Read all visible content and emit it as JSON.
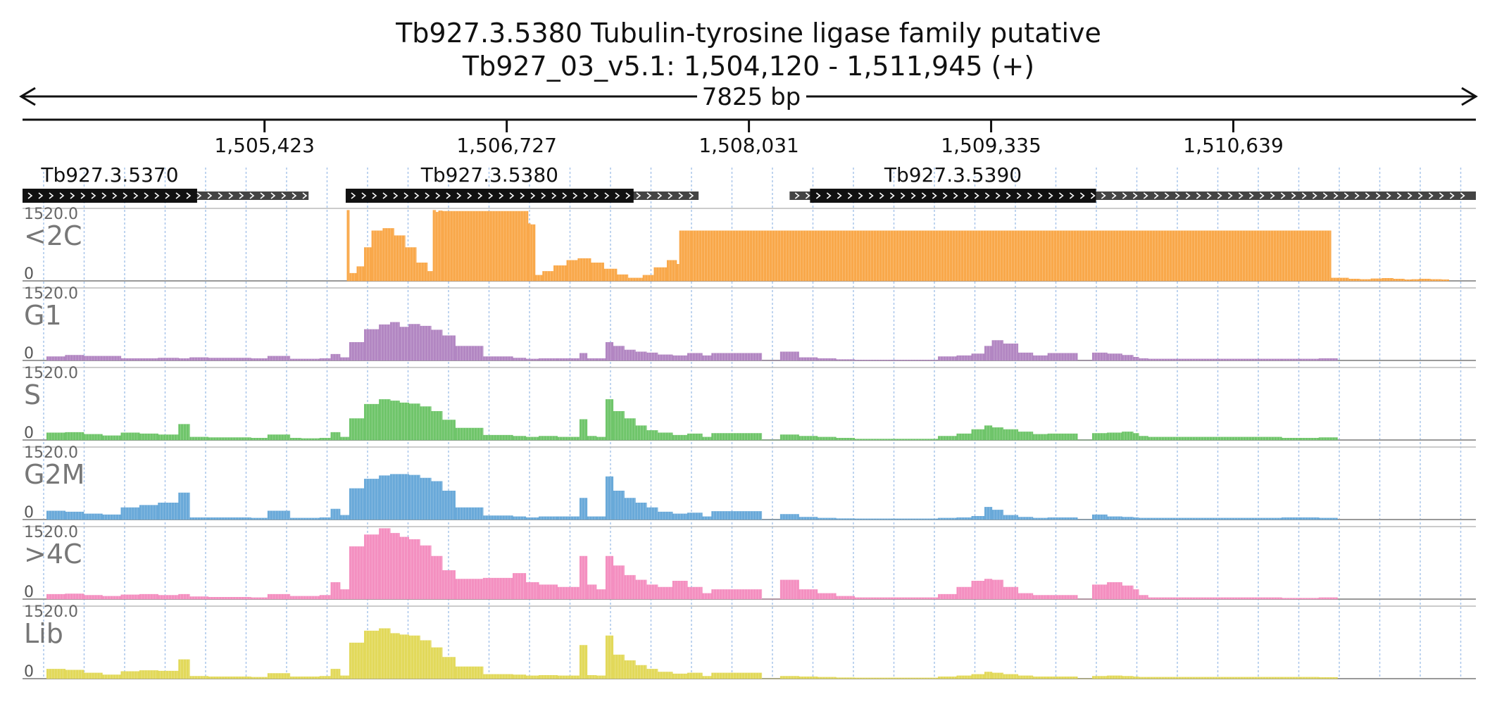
{
  "header": {
    "title": "Tb927.3.5380  Tubulin-tyrosine ligase family  putative",
    "subtitle": "Tb927_03_v5.1: 1,504,120 - 1,511,945 (+)",
    "length_label": "7825 bp"
  },
  "chart_data": {
    "type": "area",
    "title": "Tb927.3.5380  Tubulin-tyrosine ligase family  putative",
    "region": {
      "chromosome": "Tb927_03_v5.1",
      "start": 1504120,
      "end": 1511945,
      "strand": "+"
    },
    "xlim": [
      1504120,
      1511945
    ],
    "x_ticks": [
      {
        "value": 1505423,
        "label": "1,505,423"
      },
      {
        "value": 1506727,
        "label": "1,506,727"
      },
      {
        "value": 1508031,
        "label": "1,508,031"
      },
      {
        "value": 1509335,
        "label": "1,509,335"
      },
      {
        "value": 1510639,
        "label": "1,510,639"
      }
    ],
    "grid": true,
    "genes": [
      {
        "name": "Tb927.3.5370",
        "start": 1504120,
        "end": 1505660,
        "cds_start": 1504120,
        "cds_end": 1505060,
        "strand": "+"
      },
      {
        "name": "Tb927.3.5380",
        "start": 1505860,
        "end": 1507760,
        "cds_start": 1505860,
        "cds_end": 1507410,
        "strand": "+"
      },
      {
        "name": "Tb927.3.5390",
        "start": 1508250,
        "end": 1511945,
        "cds_start": 1508360,
        "cds_end": 1509900,
        "strand": "+"
      }
    ],
    "tracks_ylim": [
      0,
      1520.0
    ],
    "tracks": [
      {
        "name": "<2C",
        "color": "#f9a84a",
        "ymax_label": "1520.0",
        "ymin_label": "0",
        "x": [
          1505867,
          1505880,
          1505920,
          1505960,
          1506000,
          1506060,
          1506120,
          1506180,
          1506240,
          1506300,
          1506330,
          1506345,
          1506360,
          1506380,
          1506842,
          1506855,
          1506880,
          1506920,
          1506980,
          1507050,
          1507110,
          1507180,
          1507250,
          1507320,
          1507380,
          1507460,
          1507520,
          1507590,
          1507642,
          1507657,
          1507700,
          1507720,
          1511165,
          1511200,
          1511260,
          1511320,
          1511380,
          1511440,
          1511500,
          1511560,
          1511600,
          1511640,
          1511700,
          1511760,
          1511800
        ],
        "y": [
          1480,
          160,
          300,
          700,
          1050,
          1100,
          950,
          700,
          380,
          200,
          1480,
          1440,
          1470,
          1460,
          1200,
          1180,
          120,
          200,
          320,
          430,
          470,
          380,
          250,
          130,
          60,
          120,
          280,
          430,
          350,
          1050,
          1050,
          1050,
          60,
          60,
          40,
          30,
          45,
          55,
          40,
          25,
          30,
          40,
          30,
          25,
          0
        ]
      },
      {
        "name": "G1",
        "color": "#b286c2",
        "ymax_label": "1520.0",
        "ymin_label": "0",
        "x": [
          1504250,
          1504350,
          1504450,
          1504650,
          1504850,
          1504960,
          1505020,
          1505120,
          1505350,
          1505440,
          1505560,
          1505620,
          1505720,
          1505780,
          1505830,
          1505880,
          1505960,
          1506040,
          1506100,
          1506150,
          1506200,
          1506260,
          1506320,
          1506380,
          1506450,
          1506600,
          1506760,
          1506830,
          1506900,
          1507000,
          1507120,
          1507160,
          1507210,
          1507260,
          1507300,
          1507360,
          1507420,
          1507480,
          1507540,
          1507620,
          1507700,
          1507780,
          1507830,
          1508100,
          1508200,
          1508300,
          1508400,
          1508500,
          1508600,
          1509050,
          1509150,
          1509230,
          1509300,
          1509340,
          1509400,
          1509480,
          1509560,
          1509640,
          1509800,
          1509880,
          1509960,
          1510040,
          1510100,
          1510130,
          1510180,
          1510900,
          1511000,
          1511100,
          1511200
        ],
        "y": [
          80,
          110,
          90,
          40,
          50,
          40,
          60,
          50,
          40,
          90,
          30,
          30,
          40,
          130,
          60,
          380,
          650,
          750,
          800,
          700,
          760,
          720,
          640,
          520,
          300,
          80,
          50,
          30,
          40,
          40,
          150,
          40,
          40,
          380,
          300,
          220,
          180,
          160,
          120,
          100,
          150,
          100,
          150,
          0,
          180,
          60,
          40,
          20,
          10,
          80,
          100,
          140,
          300,
          420,
          350,
          160,
          100,
          150,
          0,
          160,
          140,
          110,
          70,
          40,
          30,
          30,
          30,
          40,
          0
        ]
      },
      {
        "name": "S",
        "color": "#6fc56a",
        "ymax_label": "1520.0",
        "ymin_label": "0",
        "x": [
          1504250,
          1504350,
          1504450,
          1504550,
          1504650,
          1504750,
          1504850,
          1504960,
          1505020,
          1505120,
          1505350,
          1505440,
          1505560,
          1505620,
          1505720,
          1505780,
          1505830,
          1505880,
          1505960,
          1506040,
          1506100,
          1506150,
          1506200,
          1506260,
          1506320,
          1506380,
          1506450,
          1506600,
          1506760,
          1506830,
          1506900,
          1507000,
          1507120,
          1507160,
          1507210,
          1507260,
          1507300,
          1507360,
          1507420,
          1507480,
          1507540,
          1507620,
          1507700,
          1507780,
          1507830,
          1508100,
          1508200,
          1508300,
          1508400,
          1508500,
          1508600,
          1509050,
          1509150,
          1509230,
          1509300,
          1509340,
          1509400,
          1509480,
          1509560,
          1509640,
          1509800,
          1509880,
          1509960,
          1510040,
          1510100,
          1510130,
          1510180,
          1510900,
          1511000,
          1511100,
          1511200
        ],
        "y": [
          150,
          160,
          120,
          90,
          150,
          130,
          110,
          330,
          60,
          50,
          40,
          110,
          40,
          30,
          40,
          160,
          60,
          450,
          750,
          850,
          820,
          780,
          760,
          700,
          600,
          420,
          250,
          100,
          80,
          60,
          80,
          60,
          430,
          80,
          60,
          850,
          600,
          450,
          300,
          200,
          150,
          100,
          130,
          60,
          140,
          0,
          110,
          80,
          60,
          40,
          20,
          80,
          130,
          220,
          300,
          260,
          220,
          170,
          120,
          130,
          0,
          140,
          150,
          170,
          140,
          80,
          60,
          40,
          40,
          50,
          0
        ]
      },
      {
        "name": "G2M",
        "color": "#69a9d9",
        "ymax_label": "1520.0",
        "ymin_label": "0",
        "x": [
          1504250,
          1504350,
          1504450,
          1504550,
          1504650,
          1504750,
          1504850,
          1504960,
          1505020,
          1505120,
          1505350,
          1505440,
          1505560,
          1505620,
          1505720,
          1505780,
          1505830,
          1505880,
          1505960,
          1506040,
          1506100,
          1506150,
          1506200,
          1506260,
          1506320,
          1506380,
          1506450,
          1506600,
          1506760,
          1506830,
          1506900,
          1507000,
          1507120,
          1507160,
          1507210,
          1507260,
          1507300,
          1507360,
          1507420,
          1507480,
          1507540,
          1507620,
          1507700,
          1507780,
          1507830,
          1508100,
          1508200,
          1508300,
          1508400,
          1508500,
          1508600,
          1509050,
          1509150,
          1509230,
          1509300,
          1509340,
          1509400,
          1509480,
          1509560,
          1509640,
          1509800,
          1509880,
          1509960,
          1510040,
          1510100,
          1510130,
          1510180,
          1510900,
          1511000,
          1511100,
          1511200
        ],
        "y": [
          180,
          160,
          120,
          100,
          250,
          300,
          350,
          560,
          40,
          40,
          30,
          180,
          30,
          30,
          40,
          220,
          90,
          650,
          850,
          920,
          950,
          950,
          930,
          870,
          800,
          600,
          250,
          80,
          60,
          40,
          60,
          60,
          450,
          60,
          60,
          900,
          600,
          450,
          350,
          250,
          160,
          120,
          140,
          60,
          170,
          0,
          110,
          50,
          30,
          20,
          15,
          30,
          40,
          70,
          260,
          200,
          90,
          50,
          30,
          40,
          0,
          100,
          60,
          50,
          40,
          30,
          30,
          40,
          40,
          30,
          0
        ]
      },
      {
        "name": ">4C",
        "color": "#f48fc0",
        "ymax_label": "1520.0",
        "ymin_label": "0",
        "x": [
          1504250,
          1504350,
          1504450,
          1504550,
          1504650,
          1504750,
          1504850,
          1504960,
          1505020,
          1505120,
          1505350,
          1505440,
          1505560,
          1505620,
          1505720,
          1505780,
          1505830,
          1505880,
          1505960,
          1506040,
          1506100,
          1506150,
          1506200,
          1506260,
          1506320,
          1506380,
          1506450,
          1506600,
          1506760,
          1506830,
          1506900,
          1507000,
          1507120,
          1507160,
          1507210,
          1507260,
          1507300,
          1507360,
          1507420,
          1507480,
          1507540,
          1507620,
          1507700,
          1507780,
          1507830,
          1508100,
          1508200,
          1508300,
          1508400,
          1508500,
          1508600,
          1509050,
          1509150,
          1509230,
          1509300,
          1509340,
          1509400,
          1509480,
          1509560,
          1509640,
          1509800,
          1509880,
          1509960,
          1510040,
          1510100,
          1510130,
          1510180,
          1510900,
          1511000,
          1511100,
          1511200
        ],
        "y": [
          100,
          110,
          80,
          60,
          90,
          100,
          80,
          100,
          50,
          40,
          30,
          100,
          60,
          60,
          80,
          350,
          200,
          1100,
          1350,
          1480,
          1380,
          1300,
          1250,
          1120,
          900,
          600,
          420,
          440,
          540,
          350,
          300,
          250,
          900,
          300,
          200,
          900,
          700,
          500,
          400,
          300,
          250,
          380,
          250,
          120,
          200,
          0,
          400,
          200,
          120,
          60,
          30,
          100,
          250,
          380,
          420,
          400,
          250,
          120,
          80,
          80,
          0,
          300,
          350,
          280,
          200,
          80,
          30,
          20,
          20,
          30,
          0
        ]
      },
      {
        "name": "Lib",
        "color": "#e2d95a",
        "ymax_label": "1520.0",
        "ymin_label": "0",
        "x": [
          1504250,
          1504350,
          1504450,
          1504550,
          1504650,
          1504750,
          1504850,
          1504960,
          1505020,
          1505120,
          1505350,
          1505440,
          1505560,
          1505620,
          1505720,
          1505780,
          1505830,
          1505880,
          1505960,
          1506040,
          1506100,
          1506150,
          1506200,
          1506260,
          1506320,
          1506380,
          1506450,
          1506600,
          1506760,
          1506830,
          1506900,
          1507000,
          1507120,
          1507160,
          1507210,
          1507260,
          1507300,
          1507360,
          1507420,
          1507480,
          1507540,
          1507620,
          1507700,
          1507780,
          1507830,
          1508100,
          1508200,
          1508300,
          1508400,
          1508500,
          1508600,
          1509050,
          1509150,
          1509230,
          1509300,
          1509340,
          1509400,
          1509480,
          1509560,
          1509640,
          1509800,
          1509880,
          1509960,
          1510040,
          1510100,
          1510130,
          1510180,
          1510900,
          1511000,
          1511100,
          1511200
        ],
        "y": [
          200,
          180,
          120,
          80,
          150,
          170,
          160,
          400,
          50,
          40,
          30,
          110,
          40,
          40,
          50,
          200,
          60,
          750,
          1000,
          1050,
          950,
          920,
          900,
          800,
          650,
          450,
          250,
          90,
          80,
          60,
          70,
          60,
          700,
          70,
          60,
          900,
          500,
          380,
          280,
          200,
          140,
          100,
          120,
          50,
          120,
          0,
          50,
          40,
          30,
          20,
          15,
          40,
          60,
          90,
          140,
          120,
          90,
          60,
          40,
          40,
          0,
          50,
          60,
          50,
          40,
          30,
          30,
          30,
          30,
          25,
          0
        ]
      }
    ]
  }
}
